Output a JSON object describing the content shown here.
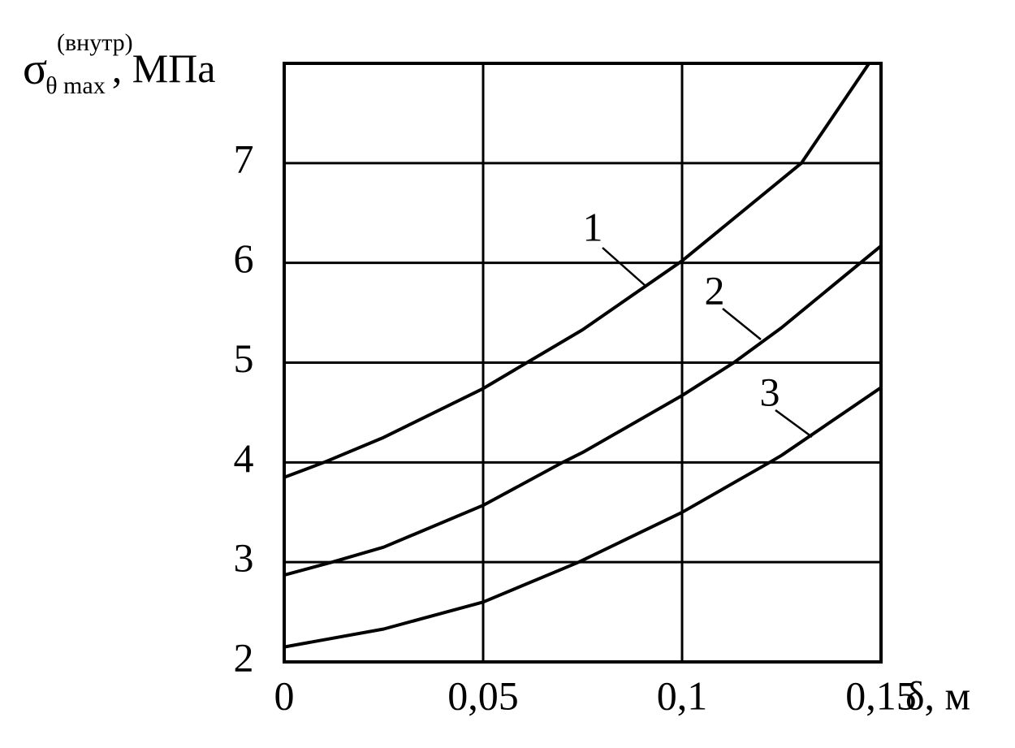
{
  "chart_data": {
    "type": "line",
    "y_label": {
      "symbol": "σ",
      "subscript": "θ max",
      "superscript": "(внутр)",
      "unit": ", МПа"
    },
    "x_label": "δ, м",
    "xlim": [
      0,
      0.15
    ],
    "ylim": [
      2,
      8
    ],
    "xticks": [
      0,
      {
        "value": 0.05,
        "label": "0,05"
      },
      {
        "value": 0.1,
        "label": "0,1"
      },
      {
        "value": 0.15,
        "label": "0,15"
      }
    ],
    "yticks": [
      2,
      3,
      4,
      5,
      6,
      7
    ],
    "grid": true,
    "color": "#000000",
    "series": [
      {
        "name": "1",
        "color": "#000000",
        "x": [
          0,
          0.01,
          0.025,
          0.05,
          0.061,
          0.075,
          0.1,
          0.13,
          0.147
        ],
        "values": [
          3.85,
          4.0,
          4.25,
          4.74,
          5.0,
          5.33,
          6.02,
          7.0,
          8.0
        ]
      },
      {
        "name": "2",
        "color": "#000000",
        "x": [
          0,
          0.012,
          0.025,
          0.05,
          0.07,
          0.075,
          0.1,
          0.113,
          0.125,
          0.15
        ],
        "values": [
          2.87,
          3.0,
          3.15,
          3.57,
          4.0,
          4.1,
          4.67,
          5.0,
          5.35,
          6.17
        ]
      },
      {
        "name": "3",
        "color": "#000000",
        "x": [
          0,
          0.025,
          0.05,
          0.074,
          0.1,
          0.122,
          0.125,
          0.15
        ],
        "values": [
          2.15,
          2.33,
          2.6,
          3.0,
          3.5,
          4.0,
          4.07,
          4.75
        ]
      }
    ]
  }
}
